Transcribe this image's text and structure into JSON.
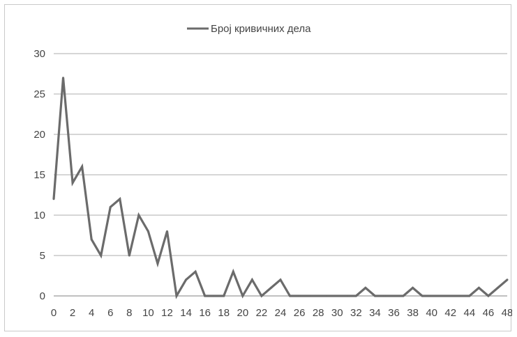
{
  "chart_data": {
    "type": "line",
    "x": [
      0,
      1,
      2,
      3,
      4,
      5,
      6,
      7,
      8,
      9,
      10,
      11,
      12,
      13,
      14,
      15,
      16,
      17,
      18,
      19,
      20,
      21,
      22,
      23,
      24,
      25,
      26,
      27,
      28,
      29,
      30,
      31,
      32,
      33,
      34,
      35,
      36,
      37,
      38,
      39,
      40,
      41,
      42,
      43,
      44,
      45,
      46,
      47,
      48
    ],
    "series": [
      {
        "name": "Број кривичних дела",
        "values": [
          12,
          27,
          14,
          16,
          7,
          5,
          11,
          12,
          5,
          10,
          8,
          4,
          8,
          0,
          2,
          3,
          0,
          0,
          0,
          3,
          0,
          2,
          0,
          1,
          2,
          0,
          0,
          0,
          0,
          0,
          0,
          0,
          0,
          1,
          0,
          0,
          0,
          0,
          1,
          0,
          0,
          0,
          0,
          0,
          0,
          1,
          0,
          1,
          2
        ]
      }
    ],
    "x_tick_labels": [
      "0",
      "2",
      "4",
      "6",
      "8",
      "10",
      "12",
      "14",
      "16",
      "18",
      "20",
      "22",
      "24",
      "26",
      "28",
      "30",
      "32",
      "34",
      "36",
      "38",
      "40",
      "42",
      "44",
      "46",
      "48"
    ],
    "y_tick_labels": [
      "0",
      "5",
      "10",
      "15",
      "20",
      "25",
      "30"
    ],
    "ylim": [
      0,
      30
    ],
    "xlim": [
      0,
      48
    ],
    "grid": "horizontal",
    "legend_position": "top",
    "colors": {
      "line": "#6b6b6b",
      "grid": "#bdbdbd",
      "axis": "#9a9a9a"
    }
  }
}
